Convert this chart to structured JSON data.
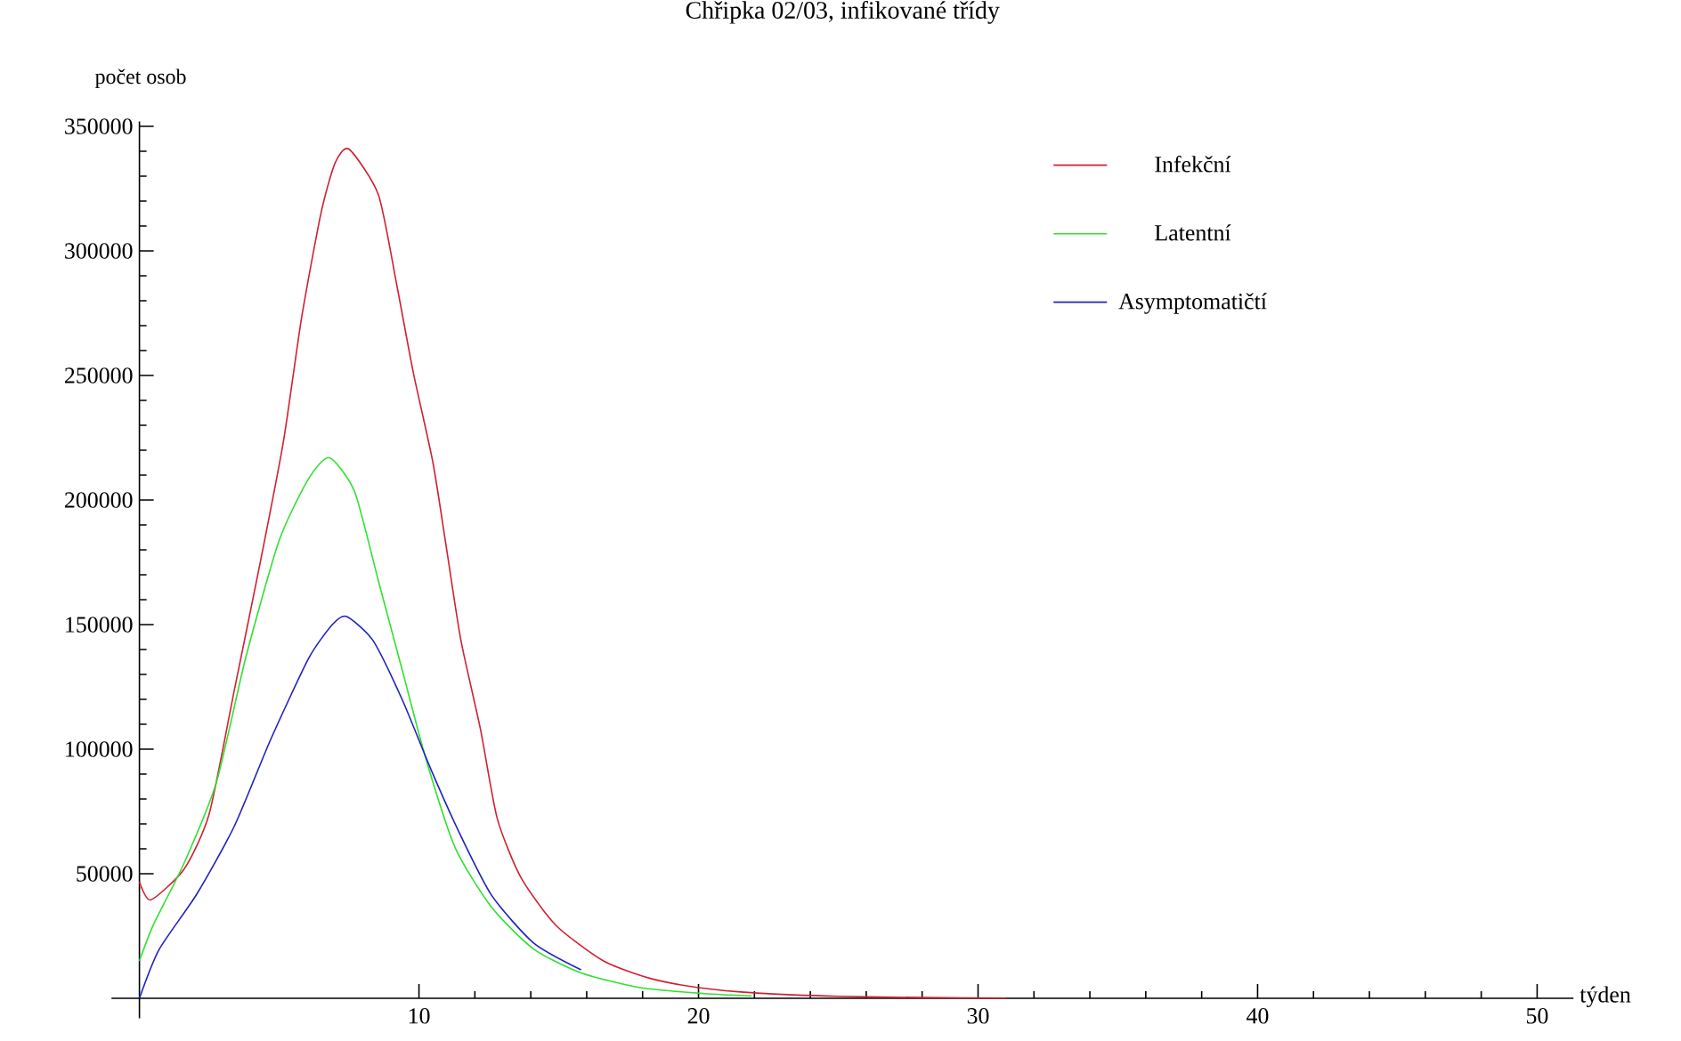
{
  "chart_data": {
    "type": "line",
    "title": "Chřipka 02/03, infikované třídy",
    "xlabel": "týden",
    "ylabel": "počet osob",
    "xlim": [
      -1,
      51.3
    ],
    "ylim": [
      -8000,
      352000
    ],
    "xticks": [
      10,
      20,
      30,
      40,
      50
    ],
    "yticks": [
      50000,
      100000,
      150000,
      200000,
      250000,
      300000,
      350000
    ],
    "legend": "top right",
    "marker": "none",
    "line_style": "solid",
    "series": [
      {
        "name": "Infekční",
        "color": "#d02030",
        "x": [
          0,
          0.4,
          1.6,
          2.5,
          3.4,
          4.3,
          5.15,
          5.8,
          6.5,
          7.0,
          7.5,
          8.55,
          9.2,
          9.8,
          10.5,
          11.0,
          11.5,
          12.2,
          12.8,
          13.65,
          14.9,
          16.6,
          18.3,
          20.0,
          22.1,
          25,
          28,
          31
        ],
        "values": [
          46800,
          39500,
          51900,
          74200,
          124000,
          173700,
          223400,
          273100,
          315400,
          335300,
          340800,
          322500,
          286700,
          251000,
          215000,
          179500,
          143700,
          108000,
          72200,
          48400,
          29300,
          15000,
          7900,
          4300,
          2100,
          800,
          300,
          100
        ]
      },
      {
        "name": "Latentní",
        "color": "#30e030",
        "x": [
          0,
          0.5,
          1.6,
          2.75,
          3.8,
          5.0,
          6.05,
          6.8,
          7.7,
          8.55,
          9.4,
          10.25,
          11.3,
          12.6,
          14.1,
          15.8,
          17.9,
          20.2,
          21.9
        ],
        "values": [
          15000,
          29500,
          54300,
          86500,
          136600,
          183800,
          208500,
          217000,
          203300,
          167500,
          131800,
          96000,
          60300,
          36500,
          19800,
          10200,
          4300,
          1900,
          1000
        ]
      },
      {
        "name": "Asymptomatičtí",
        "color": "#2020c0",
        "x": [
          0,
          0.7,
          2.05,
          3.4,
          4.7,
          6.05,
          6.9,
          7.4,
          8.35,
          9.4,
          10.45,
          11.5,
          12.6,
          14.1,
          15.8
        ],
        "values": [
          0,
          19500,
          41800,
          69200,
          104000,
          136400,
          150000,
          153300,
          143700,
          119900,
          91300,
          65100,
          41300,
          22200,
          11400
        ]
      }
    ]
  }
}
